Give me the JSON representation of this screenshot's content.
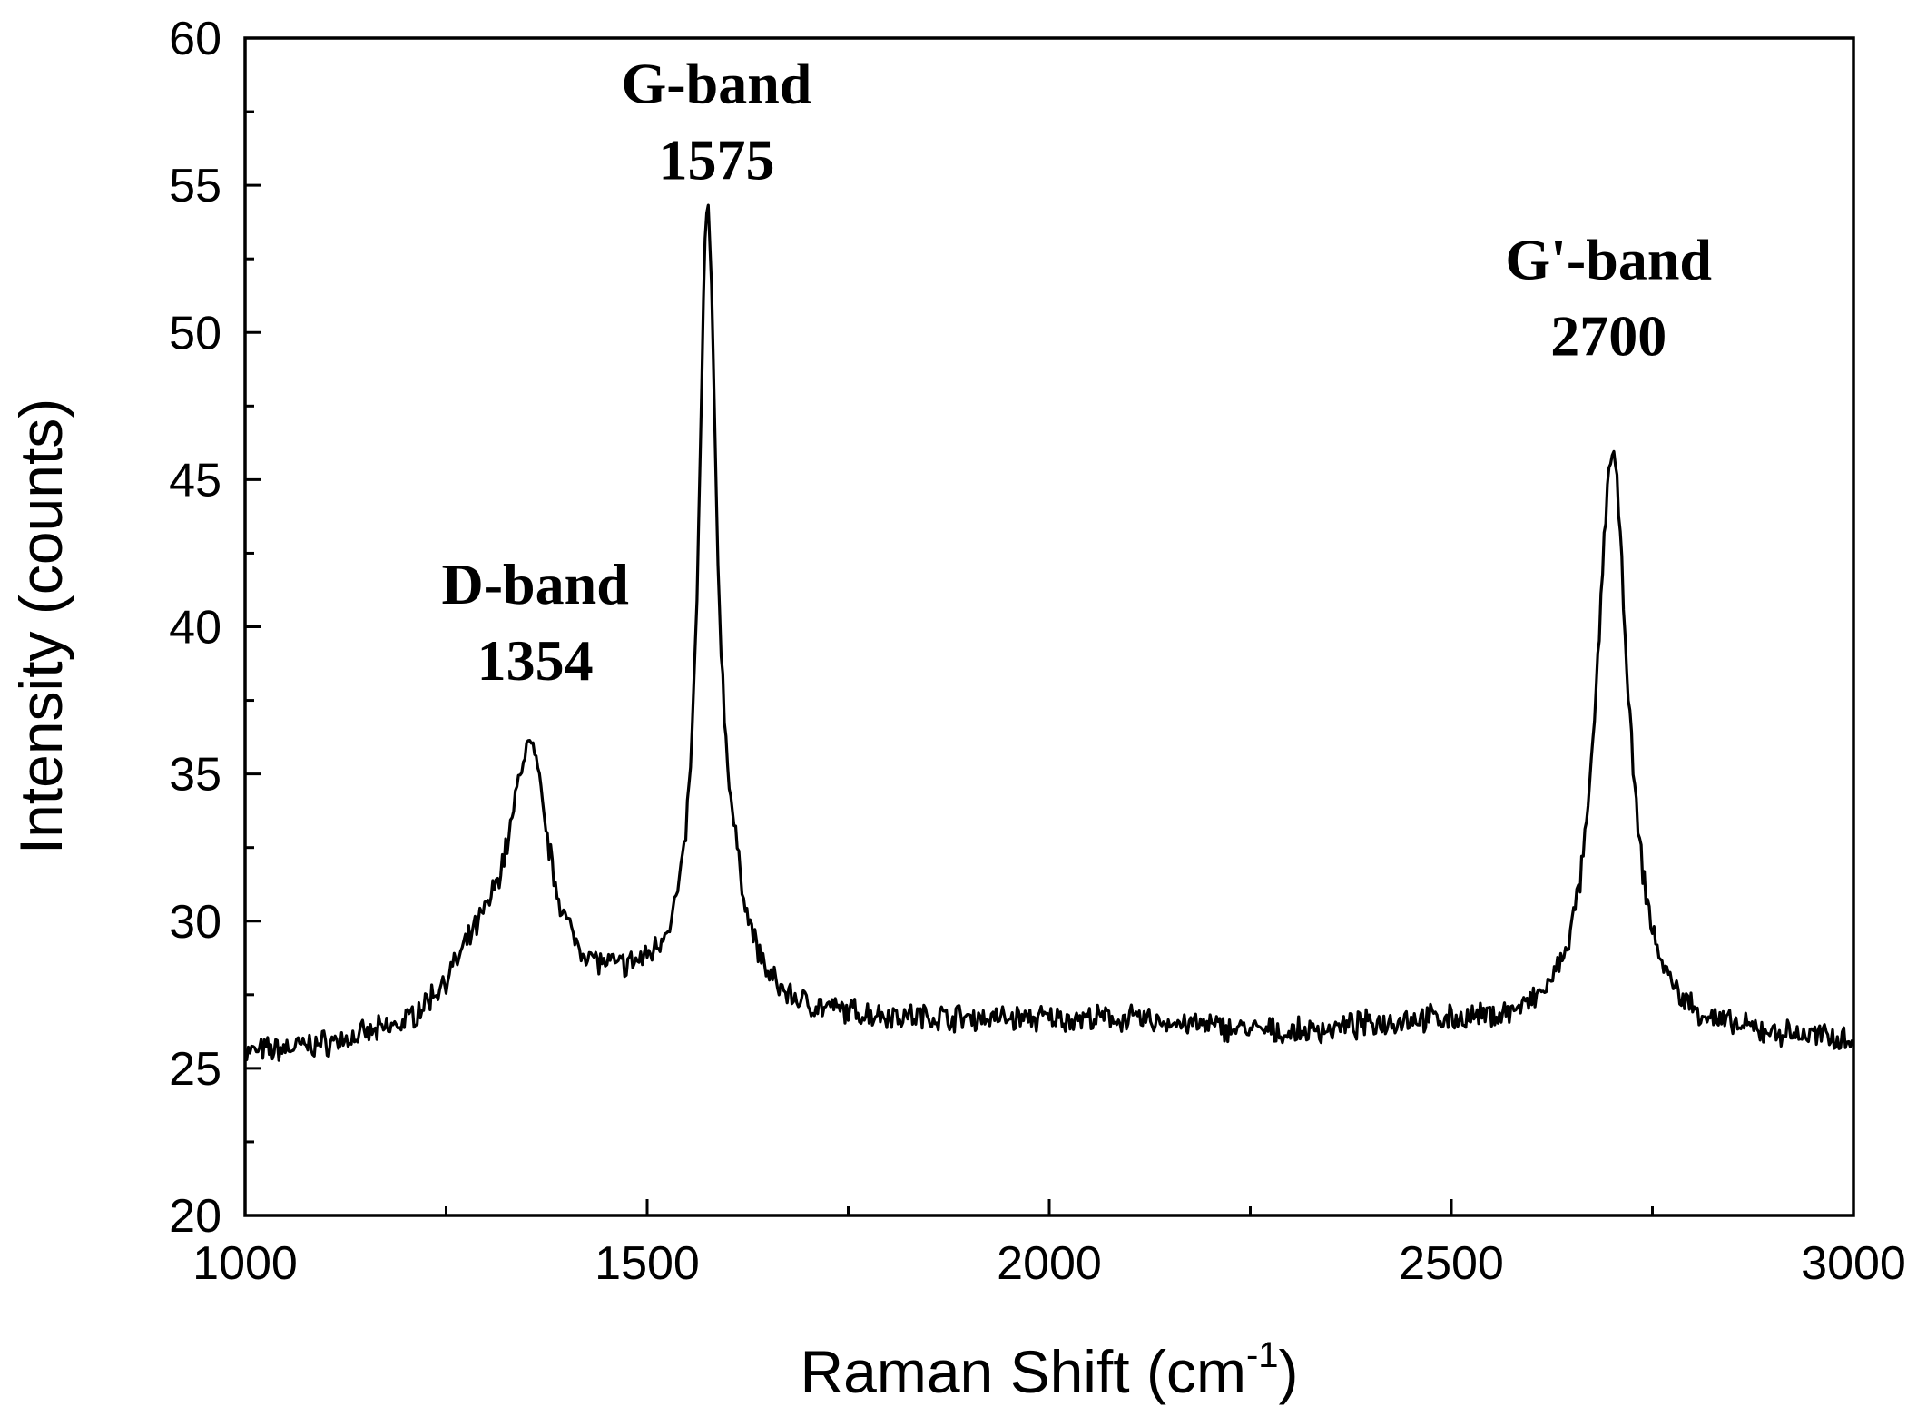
{
  "chart_data": {
    "type": "line",
    "xlabel": "Raman Shift (cm",
    "xlabel_superscript": "-1",
    "xlabel_close": ")",
    "ylabel": "Intensity (counts)",
    "xlim": [
      1000,
      3000
    ],
    "ylim": [
      20,
      60
    ],
    "x_ticks": [
      1000,
      1500,
      2000,
      2500,
      3000
    ],
    "x_minor_ticks": [
      1250,
      1750,
      2250,
      2750
    ],
    "y_ticks": [
      20,
      25,
      30,
      35,
      40,
      45,
      50,
      55,
      60
    ],
    "y_minor_ticks": [
      22.5,
      27.5,
      32.5,
      37.5,
      42.5,
      47.5,
      52.5,
      57.5
    ],
    "grid": false,
    "line_color": "#000000",
    "baseline": [
      {
        "x": 1000,
        "y": 25.4
      },
      {
        "x": 1100,
        "y": 25.6
      },
      {
        "x": 1200,
        "y": 25.9
      },
      {
        "x": 1280,
        "y": 27.0
      },
      {
        "x": 1420,
        "y": 27.2
      },
      {
        "x": 1520,
        "y": 27.5
      },
      {
        "x": 1650,
        "y": 26.6
      },
      {
        "x": 1900,
        "y": 26.6
      },
      {
        "x": 2100,
        "y": 26.6
      },
      {
        "x": 2300,
        "y": 26.1
      },
      {
        "x": 2450,
        "y": 26.5
      },
      {
        "x": 2600,
        "y": 26.2
      },
      {
        "x": 2800,
        "y": 26.0
      },
      {
        "x": 3000,
        "y": 25.9
      }
    ],
    "peaks": [
      {
        "center": 1354,
        "height": 7.6,
        "width": 28
      },
      {
        "center": 1310,
        "height": 1.8,
        "width": 60
      },
      {
        "center": 1575,
        "height": 25.2,
        "width": 13
      },
      {
        "center": 1600,
        "height": 3.0,
        "width": 30
      },
      {
        "center": 2700,
        "height": 19.8,
        "width": 24
      }
    ],
    "annotations": [
      {
        "name": "D-band",
        "label": "D-band",
        "value": "1354",
        "x": 1354,
        "y": 34.0
      },
      {
        "name": "G-band",
        "label": "G-band",
        "value": "1575",
        "x": 1575,
        "y": 52.4
      },
      {
        "name": "Gprime-band",
        "label": "G'-band",
        "value": "2700",
        "x": 2700,
        "y": 46.1
      }
    ]
  }
}
